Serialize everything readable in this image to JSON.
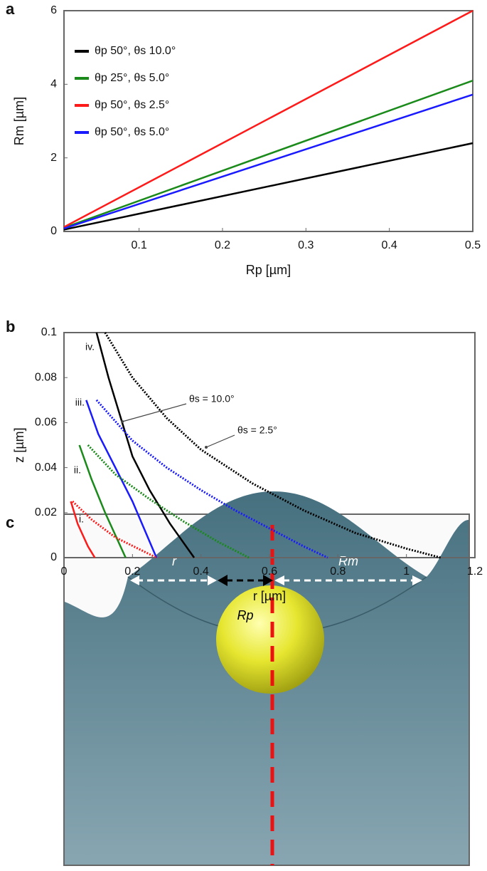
{
  "panels": [
    "a",
    "b",
    "c"
  ],
  "chart_data": [
    {
      "type": "line",
      "xlabel": "Rp [µm]",
      "ylabel": "Rm [µm]",
      "xlim": [
        0.01,
        0.5
      ],
      "xticks": [
        0.1,
        0.2,
        0.3,
        0.4,
        0.5
      ],
      "ylim": [
        0,
        6
      ],
      "yticks": [
        0,
        2,
        4,
        6
      ],
      "legend": "upper left",
      "series": [
        {
          "name": "θp 50°, θs 10.0°",
          "color": "#000000",
          "x": [
            0.01,
            0.5
          ],
          "values": [
            0.05,
            2.4
          ]
        },
        {
          "name": "θp 25°, θs 5.0°",
          "color": "#1a8a1a",
          "x": [
            0.01,
            0.5
          ],
          "values": [
            0.1,
            4.1
          ]
        },
        {
          "name": "θp 50°, θs 2.5°",
          "color": "#ff1a1a",
          "x": [
            0.01,
            0.5
          ],
          "values": [
            0.12,
            6.0
          ]
        },
        {
          "name": "θp 50°, θs 5.0°",
          "color": "#1a1aff",
          "x": [
            0.01,
            0.5
          ],
          "values": [
            0.08,
            3.72
          ]
        }
      ]
    },
    {
      "type": "line",
      "xlabel": "r [µm]",
      "ylabel": "z [µm]",
      "xlim": [
        0,
        1.2
      ],
      "xticks": [
        0,
        0.2,
        0.4,
        0.6,
        0.8,
        1,
        1.2
      ],
      "ylim": [
        0,
        0.1
      ],
      "yticks": [
        0,
        0.02,
        0.04,
        0.06,
        0.08,
        0.1
      ],
      "series": [
        {
          "color": "#000000",
          "dashed": false,
          "x": [
            0.095,
            0.13,
            0.17,
            0.2,
            0.25,
            0.31,
            0.38
          ],
          "values": [
            0.1,
            0.08,
            0.06,
            0.045,
            0.03,
            0.015,
            0
          ]
        },
        {
          "color": "#000000",
          "dashed": true,
          "x": [
            0.12,
            0.2,
            0.3,
            0.4,
            0.55,
            0.7,
            0.85,
            1.0,
            1.1
          ],
          "values": [
            0.1,
            0.08,
            0.062,
            0.048,
            0.033,
            0.021,
            0.011,
            0.004,
            0
          ]
        },
        {
          "color": "#1a1aff",
          "dashed": false,
          "x": [
            0.065,
            0.1,
            0.15,
            0.2,
            0.27
          ],
          "values": [
            0.07,
            0.055,
            0.04,
            0.025,
            0
          ]
        },
        {
          "color": "#1a1aff",
          "dashed": true,
          "x": [
            0.095,
            0.2,
            0.3,
            0.4,
            0.5,
            0.6,
            0.7,
            0.77
          ],
          "values": [
            0.07,
            0.052,
            0.04,
            0.03,
            0.021,
            0.013,
            0.005,
            0
          ]
        },
        {
          "color": "#1a8a1a",
          "dashed": false,
          "x": [
            0.045,
            0.08,
            0.12,
            0.18
          ],
          "values": [
            0.05,
            0.035,
            0.02,
            0
          ]
        },
        {
          "color": "#1a8a1a",
          "dashed": true,
          "x": [
            0.07,
            0.15,
            0.25,
            0.35,
            0.45,
            0.54
          ],
          "values": [
            0.05,
            0.037,
            0.026,
            0.016,
            0.007,
            0
          ]
        },
        {
          "color": "#ff1a1a",
          "dashed": false,
          "x": [
            0.02,
            0.04,
            0.07,
            0.09
          ],
          "values": [
            0.025,
            0.015,
            0.005,
            0
          ]
        },
        {
          "color": "#ff1a1a",
          "dashed": true,
          "x": [
            0.025,
            0.08,
            0.15,
            0.27
          ],
          "values": [
            0.025,
            0.017,
            0.009,
            0
          ]
        }
      ],
      "annotations": [
        "i.",
        "ii.",
        "iii.",
        "iv.",
        "θs = 10.0°",
        "θs = 2.5°"
      ]
    }
  ],
  "diagram": {
    "labels": [
      "r",
      "Rp",
      "Rm"
    ]
  }
}
